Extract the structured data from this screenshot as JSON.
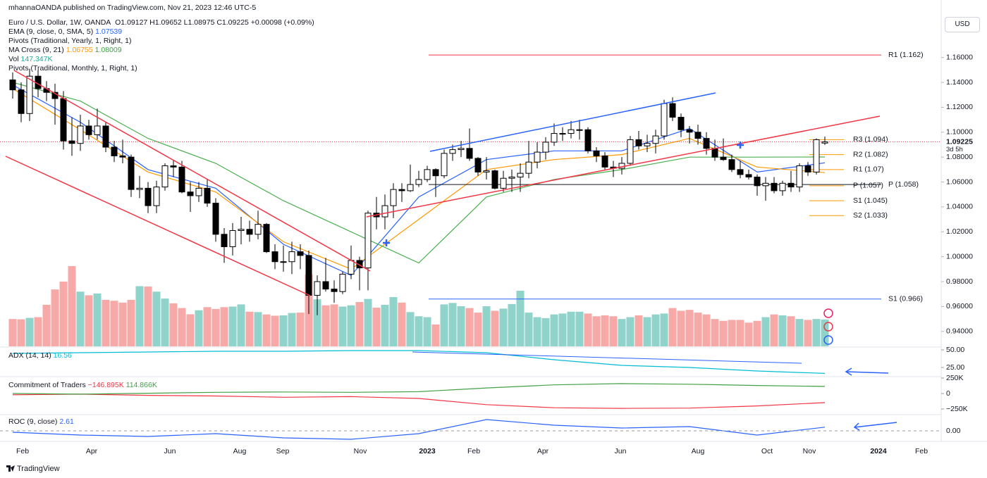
{
  "header": {
    "published": "mhannaOANDA published on TradingView.com, Nov 21, 2023 12:46 UTC-5",
    "currency": "USD",
    "brand": "TradingView"
  },
  "chart_data": {
    "type": "candlestick",
    "title": "Euro / U.S. Dollar, 1W, OANDA",
    "ohlc_text": "O1.09127 H1.09652 L1.08975 C1.09225 +0.00098 (+0.09%)",
    "candles": [
      [
        1.142,
        1.148,
        1.127,
        1.134
      ],
      [
        1.134,
        1.14,
        1.108,
        1.115
      ],
      [
        1.115,
        1.151,
        1.109,
        1.145
      ],
      [
        1.145,
        1.15,
        1.128,
        1.135
      ],
      [
        1.135,
        1.141,
        1.125,
        1.132
      ],
      [
        1.132,
        1.139,
        1.106,
        1.127
      ],
      [
        1.127,
        1.133,
        1.086,
        1.093
      ],
      [
        1.093,
        1.112,
        1.081,
        1.091
      ],
      [
        1.091,
        1.114,
        1.085,
        1.105
      ],
      [
        1.105,
        1.11,
        1.094,
        1.098
      ],
      [
        1.098,
        1.119,
        1.094,
        1.105
      ],
      [
        1.105,
        1.108,
        1.084,
        1.088
      ],
      [
        1.088,
        1.093,
        1.076,
        1.081
      ],
      [
        1.081,
        1.094,
        1.075,
        1.08
      ],
      [
        1.08,
        1.082,
        1.048,
        1.054
      ],
      [
        1.054,
        1.065,
        1.047,
        1.055
      ],
      [
        1.055,
        1.06,
        1.035,
        1.041
      ],
      [
        1.041,
        1.061,
        1.035,
        1.056
      ],
      [
        1.056,
        1.075,
        1.053,
        1.073
      ],
      [
        1.073,
        1.078,
        1.064,
        1.072
      ],
      [
        1.072,
        1.077,
        1.051,
        1.052
      ],
      [
        1.052,
        1.06,
        1.036,
        1.049
      ],
      [
        1.049,
        1.06,
        1.044,
        1.055
      ],
      [
        1.055,
        1.062,
        1.04,
        1.043
      ],
      [
        1.043,
        1.047,
        1.012,
        1.018
      ],
      [
        1.018,
        1.023,
        0.995,
        1.008
      ],
      [
        1.008,
        1.027,
        1.001,
        1.021
      ],
      [
        1.021,
        1.032,
        1.01,
        1.022
      ],
      [
        1.022,
        1.029,
        1.012,
        1.018
      ],
      [
        1.018,
        1.037,
        1.014,
        1.026
      ],
      [
        1.026,
        1.027,
        1.003,
        1.004
      ],
      [
        1.004,
        1.01,
        0.99,
        0.996
      ],
      [
        0.996,
        1.009,
        0.988,
        0.996
      ],
      [
        0.996,
        1.012,
        0.986,
        1.004
      ],
      [
        1.004,
        1.01,
        0.99,
        1.001
      ],
      [
        1.001,
        1.005,
        0.954,
        0.969
      ],
      [
        0.969,
        0.985,
        0.953,
        0.98
      ],
      [
        0.98,
        0.999,
        0.972,
        0.974
      ],
      [
        0.974,
        0.981,
        0.963,
        0.972
      ],
      [
        0.972,
        0.988,
        0.97,
        0.986
      ],
      [
        0.986,
        1.009,
        0.982,
        0.997
      ],
      [
        0.997,
        1.0,
        0.973,
        0.991
      ],
      [
        0.991,
        1.037,
        0.973,
        1.035
      ],
      [
        1.035,
        1.048,
        1.022,
        1.032
      ],
      [
        1.032,
        1.05,
        1.022,
        1.041
      ],
      [
        1.041,
        1.059,
        1.031,
        1.054
      ],
      [
        1.054,
        1.059,
        1.044,
        1.053
      ],
      [
        1.053,
        1.074,
        1.052,
        1.058
      ],
      [
        1.058,
        1.069,
        1.056,
        1.062
      ],
      [
        1.062,
        1.073,
        1.06,
        1.07
      ],
      [
        1.07,
        1.071,
        1.048,
        1.065
      ],
      [
        1.065,
        1.086,
        1.063,
        1.083
      ],
      [
        1.083,
        1.09,
        1.077,
        1.086
      ],
      [
        1.086,
        1.093,
        1.08,
        1.087
      ],
      [
        1.087,
        1.103,
        1.077,
        1.079
      ],
      [
        1.079,
        1.08,
        1.065,
        1.068
      ],
      [
        1.068,
        1.08,
        1.062,
        1.069
      ],
      [
        1.069,
        1.07,
        1.054,
        1.055
      ],
      [
        1.055,
        1.069,
        1.052,
        1.063
      ],
      [
        1.063,
        1.07,
        1.052,
        1.064
      ],
      [
        1.064,
        1.075,
        1.052,
        1.067
      ],
      [
        1.067,
        1.093,
        1.063,
        1.076
      ],
      [
        1.076,
        1.092,
        1.071,
        1.084
      ],
      [
        1.084,
        1.096,
        1.078,
        1.092
      ],
      [
        1.092,
        1.107,
        1.089,
        1.099
      ],
      [
        1.099,
        1.104,
        1.093,
        1.099
      ],
      [
        1.099,
        1.109,
        1.095,
        1.102
      ],
      [
        1.102,
        1.11,
        1.094,
        1.102
      ],
      [
        1.102,
        1.104,
        1.083,
        1.085
      ],
      [
        1.085,
        1.088,
        1.076,
        1.081
      ],
      [
        1.081,
        1.084,
        1.07,
        1.072
      ],
      [
        1.072,
        1.077,
        1.064,
        1.071
      ],
      [
        1.071,
        1.08,
        1.066,
        1.075
      ],
      [
        1.075,
        1.097,
        1.073,
        1.094
      ],
      [
        1.094,
        1.101,
        1.086,
        1.089
      ],
      [
        1.089,
        1.098,
        1.084,
        1.091
      ],
      [
        1.091,
        1.102,
        1.083,
        1.097
      ],
      [
        1.097,
        1.126,
        1.094,
        1.123
      ],
      [
        1.123,
        1.128,
        1.109,
        1.112
      ],
      [
        1.112,
        1.115,
        1.096,
        1.102
      ],
      [
        1.102,
        1.105,
        1.091,
        1.1
      ],
      [
        1.1,
        1.106,
        1.09,
        1.095
      ],
      [
        1.095,
        1.1,
        1.082,
        1.087
      ],
      [
        1.087,
        1.094,
        1.077,
        1.08
      ],
      [
        1.08,
        1.095,
        1.077,
        1.078
      ],
      [
        1.078,
        1.082,
        1.068,
        1.07
      ],
      [
        1.07,
        1.077,
        1.063,
        1.066
      ],
      [
        1.066,
        1.07,
        1.062,
        1.064
      ],
      [
        1.064,
        1.066,
        1.049,
        1.057
      ],
      [
        1.057,
        1.064,
        1.045,
        1.059
      ],
      [
        1.059,
        1.064,
        1.051,
        1.053
      ],
      [
        1.053,
        1.061,
        1.049,
        1.059
      ],
      [
        1.059,
        1.069,
        1.052,
        1.056
      ],
      [
        1.056,
        1.075,
        1.052,
        1.073
      ],
      [
        1.073,
        1.076,
        1.065,
        1.068
      ],
      [
        1.068,
        1.095,
        1.066,
        1.094
      ],
      [
        1.09127,
        1.09652,
        1.08975,
        1.09225
      ]
    ],
    "ylim": [
      0.928,
      1.196
    ],
    "yticks": [
      {
        "value": 1.16,
        "label": "1.16000"
      },
      {
        "value": 1.14,
        "label": "1.14000"
      },
      {
        "value": 1.12,
        "label": "1.12000"
      },
      {
        "value": 1.1,
        "label": "1.10000"
      },
      {
        "value": 1.08,
        "label": "1.08000"
      },
      {
        "value": 1.06,
        "label": "1.06000"
      },
      {
        "value": 1.04,
        "label": "1.04000"
      },
      {
        "value": 1.02,
        "label": "1.02000"
      },
      {
        "value": 1.0,
        "label": "1.00000"
      },
      {
        "value": 0.98,
        "label": "0.98000"
      },
      {
        "value": 0.96,
        "label": "0.96000"
      },
      {
        "value": 0.94,
        "label": "0.94000"
      }
    ],
    "last_price": {
      "value": 1.09225,
      "label": "1.09225",
      "countdown": "3d 5h"
    },
    "x_labels": [
      "Feb",
      "Apr",
      "Jun",
      "Aug",
      "Sep",
      "Nov",
      "2023",
      "Feb",
      "Apr",
      "Jun",
      "Aug",
      "Oct",
      "Nov",
      "2024",
      "Feb"
    ],
    "overlays": [
      {
        "name": "EMA (9, close, 0, SMA, 5)",
        "lines": [
          {
            "color": "#2962ff",
            "values": [
              1.138,
              1.108,
              1.07,
              1.055,
              1.01,
              0.985,
              1.048,
              1.078,
              1.085,
              1.085,
              1.103,
              1.068,
              1.07539
            ],
            "value_label": "1.07539"
          }
        ]
      },
      {
        "name": "MA Cross (9, 21)",
        "lines": [
          {
            "color": "#ff9800",
            "values": [
              1.135,
              1.102,
              1.068,
              1.052,
              1.012,
              0.99,
              1.03,
              1.07,
              1.078,
              1.082,
              1.095,
              1.072,
              1.06755
            ],
            "value_label": "1.06755"
          },
          {
            "color": "#4caf50",
            "values": [
              1.14,
              1.125,
              1.095,
              1.075,
              1.045,
              1.02,
              0.995,
              1.048,
              1.062,
              1.07,
              1.08,
              1.08,
              1.08009
            ],
            "value_label": "1.08009"
          }
        ]
      }
    ],
    "pivots_yearly": {
      "name": "Pivots (Traditional, Yearly, 1, Right, 1)",
      "levels": [
        {
          "value": 1.162,
          "label": "R1 (1.162)",
          "color": "#f23645"
        },
        {
          "value": 1.058,
          "label": "P (1.058)",
          "color": "#131722"
        },
        {
          "value": 0.966,
          "label": "S1 (0.966)",
          "color": "#2962ff"
        }
      ]
    },
    "pivots_monthly": {
      "name": "Pivots (Traditional, Monthly, 1, Right, 1)",
      "levels": [
        {
          "value": 1.094,
          "label": "R3 (1.094)",
          "color": "#ff9800"
        },
        {
          "value": 1.082,
          "label": "R2 (1.082)",
          "color": "#ff9800"
        },
        {
          "value": 1.07,
          "label": "R1 (1.07)",
          "color": "#ff9800"
        },
        {
          "value": 1.057,
          "label": "P (1.057)",
          "color": "#ff9800"
        },
        {
          "value": 1.045,
          "label": "S1 (1.045)",
          "color": "#ff9800"
        },
        {
          "value": 1.033,
          "label": "S2 (1.033)",
          "color": "#ff9800"
        }
      ]
    },
    "volume": {
      "name": "Vol",
      "value_label": "147.347K",
      "values": [
        150,
        148,
        156,
        160,
        228,
        312,
        355,
        440,
        300,
        280,
        290,
        255,
        250,
        240,
        255,
        330,
        328,
        300,
        262,
        236,
        210,
        176,
        198,
        215,
        205,
        215,
        218,
        230,
        190,
        188,
        175,
        168,
        170,
        183,
        185,
        395,
        258,
        225,
        230,
        218,
        225,
        243,
        260,
        212,
        228,
        270,
        240,
        188,
        165,
        160,
        120,
        230,
        238,
        220,
        210,
        185,
        220,
        195,
        207,
        232,
        305,
        185,
        160,
        155,
        175,
        180,
        190,
        190,
        180,
        165,
        170,
        165,
        150,
        160,
        170,
        160,
        175,
        180,
        210,
        195,
        200,
        185,
        175,
        150,
        140,
        145,
        145,
        130,
        140,
        160,
        175,
        170,
        165,
        150,
        145,
        150,
        147.347
      ]
    },
    "adx": {
      "name": "ADX (14, 14)",
      "color": "#00bcd4",
      "value_label": "16.56",
      "values": [
        45,
        46,
        47,
        48,
        48,
        49,
        49,
        46,
        36,
        28,
        25,
        20,
        16.56
      ],
      "ylim": [
        12,
        54
      ],
      "yticks": [
        {
          "value": 50,
          "label": "50.00"
        },
        {
          "value": 25,
          "label": "25.00"
        }
      ]
    },
    "cot": {
      "name": "Commitment of Traders",
      "ylim": [
        -341,
        273
      ],
      "yticks": [
        {
          "value": 250,
          "label": "250K"
        },
        0,
        {
          "value": -250,
          "label": "−250K"
        }
      ],
      "lines": [
        {
          "color": "#f23645",
          "values": [
            -20,
            -10,
            -30,
            -40,
            -60,
            -50,
            -80,
            -180,
            -230,
            -240,
            -235,
            -200,
            -146.895
          ],
          "value_label": "−146.895K"
        },
        {
          "color": "#43a047",
          "values": [
            0,
            -10,
            5,
            20,
            25,
            20,
            30,
            90,
            140,
            160,
            150,
            130,
            114.866
          ],
          "value_label": "114.866K"
        }
      ]
    },
    "roc": {
      "name": "ROC (9, close)",
      "color": "#2962ff",
      "value_label": "2.61",
      "values": [
        -1,
        -3,
        -4,
        -2,
        -5,
        -6,
        -2,
        8,
        4,
        2,
        3,
        -3,
        2.61
      ],
      "ylim": [
        -7.5,
        11.5
      ],
      "yticks": [
        {
          "value": 0,
          "label": "0.00"
        }
      ]
    }
  }
}
